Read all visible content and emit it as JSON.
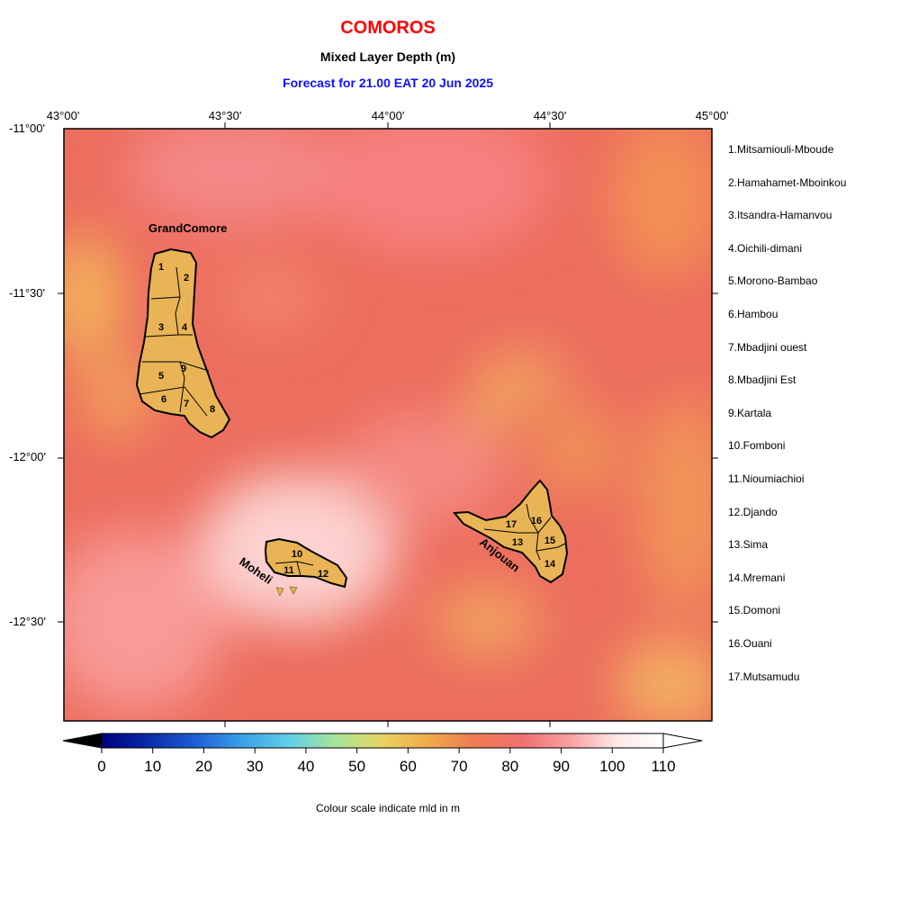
{
  "header": {
    "title": "COMOROS",
    "subtitle": "Mixed Layer Depth (m)",
    "forecast": "Forecast for  21.00 EAT 20 Jun 2025"
  },
  "axes": {
    "lon_labels": [
      "43°00'",
      "43°30'",
      "44°00'",
      "44°30'",
      "45°00'"
    ],
    "lat_labels": [
      "-11°00'",
      "-11°30'",
      "-12°00'",
      "-12°30'"
    ]
  },
  "map": {
    "island_labels": {
      "grand_comore": "GrandComore",
      "moheli": "Moheli",
      "anjouan": "Anjouan"
    },
    "region_numbers": [
      "1",
      "2",
      "3",
      "4",
      "5",
      "6",
      "7",
      "8",
      "9",
      "10",
      "11",
      "12",
      "13",
      "14",
      "15",
      "16",
      "17"
    ],
    "land_color": "#e8b455",
    "ocean_base_color": "#ec6e5e"
  },
  "legend": {
    "items": [
      "1.Mitsamiouli-Mboude",
      "2.Hamahamet-Mboinkou",
      "3.Itsandra-Hamanvou",
      "4.Oichili-dimani",
      "5.Morono-Bambao",
      "6.Hambou",
      "7.Mbadjini ouest",
      "8.Mbadjini Est",
      "9.Kartala",
      "10.Fomboni",
      "11.Nioumiachioi",
      "12.Djando",
      "13.Sima",
      "14.Mremani",
      "15.Domoni",
      "16.Ouani",
      "17.Mutsamudu"
    ]
  },
  "colorbar": {
    "ticks": [
      "0",
      "10",
      "20",
      "30",
      "40",
      "50",
      "60",
      "70",
      "80",
      "90",
      "100",
      "110"
    ],
    "caption": "Colour scale indicate mld in m",
    "colors": [
      "#000080",
      "#0a2aa8",
      "#1d5fd2",
      "#3aa0e8",
      "#5fd0e8",
      "#a8e49a",
      "#e8d460",
      "#f0a84a",
      "#ee7a55",
      "#f07070",
      "#f8a0a0",
      "#fde8e8",
      "#ffffff"
    ]
  }
}
